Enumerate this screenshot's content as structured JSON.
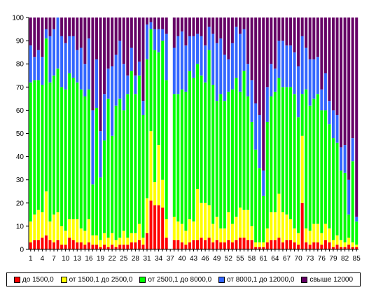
{
  "chart_data": {
    "type": "bar",
    "stacked": true,
    "normalized_percent": true,
    "ylim": [
      0,
      100
    ],
    "yticks": [
      0,
      10,
      20,
      30,
      40,
      50,
      60,
      70,
      80,
      90,
      100
    ],
    "xtick_labels": [
      "1",
      "4",
      "7",
      "10",
      "13",
      "16",
      "19",
      "22",
      "25",
      "28",
      "31",
      "34",
      "37",
      "40",
      "43",
      "46",
      "49",
      "52",
      "55",
      "58",
      "61",
      "64",
      "67",
      "70",
      "73",
      "76",
      "79",
      "82",
      "85"
    ],
    "grid": false,
    "legend_position": "bottom",
    "title": "",
    "xlabel": "",
    "ylabel": "",
    "categories": [
      "1",
      "2",
      "3",
      "4",
      "5",
      "6",
      "7",
      "8",
      "9",
      "10",
      "11",
      "12",
      "13",
      "14",
      "15",
      "16",
      "17",
      "18",
      "19",
      "20",
      "21",
      "22",
      "23",
      "24",
      "25",
      "26",
      "27",
      "28",
      "29",
      "30",
      "31",
      "32",
      "33",
      "34",
      "35",
      "36",
      "37",
      "38",
      "39",
      "40",
      "41",
      "42",
      "43",
      "44",
      "45",
      "46",
      "47",
      "48",
      "49",
      "50",
      "51",
      "52",
      "53",
      "54",
      "55",
      "56",
      "57",
      "58",
      "59",
      "60",
      "61",
      "62",
      "63",
      "64",
      "65",
      "66",
      "67",
      "68",
      "69",
      "70",
      "71",
      "72",
      "73",
      "74",
      "75",
      "76",
      "77",
      "78",
      "79",
      "80",
      "81",
      "82",
      "83",
      "84",
      "85"
    ],
    "series": [
      {
        "name": "до 1500,0",
        "color": "#ff0000",
        "values": [
          3,
          4,
          4,
          5,
          6,
          4,
          3,
          4,
          2,
          2,
          5,
          4,
          3,
          3,
          2,
          3,
          2,
          2,
          1,
          2,
          1,
          2,
          1,
          2,
          2,
          2,
          3,
          3,
          4,
          2,
          7,
          21,
          19,
          19,
          18,
          5,
          0,
          4,
          4,
          3,
          2,
          3,
          4,
          4,
          5,
          4,
          5,
          3,
          4,
          3,
          3,
          4,
          3,
          4,
          5,
          5,
          4,
          4,
          1,
          1,
          1,
          3,
          4,
          4,
          5,
          3,
          4,
          4,
          3,
          2,
          20,
          3,
          2,
          3,
          3,
          2,
          4,
          3,
          1,
          2,
          1,
          1,
          2,
          1,
          1
        ]
      },
      {
        "name": "от 1500,1 до 2500,0",
        "color": "#ffff00",
        "values": [
          9,
          11,
          13,
          11,
          19,
          8,
          12,
          12,
          8,
          6,
          8,
          9,
          10,
          6,
          6,
          10,
          4,
          4,
          3,
          5,
          4,
          5,
          3,
          3,
          6,
          3,
          4,
          4,
          7,
          3,
          15,
          30,
          10,
          26,
          12,
          8,
          0,
          10,
          8,
          8,
          6,
          10,
          8,
          22,
          15,
          16,
          14,
          8,
          10,
          6,
          6,
          12,
          8,
          10,
          13,
          12,
          13,
          6,
          2,
          2,
          2,
          6,
          12,
          12,
          19,
          13,
          11,
          9,
          6,
          5,
          29,
          6,
          6,
          8,
          8,
          5,
          7,
          6,
          3,
          4,
          3,
          2,
          3,
          2,
          1
        ]
      },
      {
        "name": "от 2500,1 до 8000,0",
        "color": "#00ff00",
        "values": [
          60,
          58,
          56,
          55,
          66,
          60,
          60,
          62,
          60,
          61,
          63,
          61,
          59,
          60,
          58,
          56,
          22,
          55,
          27,
          40,
          60,
          42,
          58,
          60,
          52,
          62,
          70,
          60,
          64,
          53,
          60,
          44,
          57,
          40,
          60,
          60,
          0,
          53,
          55,
          58,
          60,
          64,
          62,
          54,
          55,
          52,
          67,
          60,
          50,
          58,
          55,
          52,
          58,
          60,
          50,
          60,
          49,
          45,
          40,
          32,
          20,
          46,
          50,
          52,
          50,
          54,
          55,
          57,
          58,
          50,
          18,
          60,
          54,
          54,
          56,
          53,
          49,
          45,
          44,
          40,
          30,
          30,
          10,
          35,
          10
        ]
      },
      {
        "name": "от 8000,1 до 12000,0",
        "color": "#3366ff",
        "values": [
          16,
          10,
          13,
          12,
          4,
          20,
          20,
          22,
          22,
          20,
          16,
          18,
          14,
          18,
          14,
          22,
          32,
          21,
          20,
          20,
          13,
          30,
          22,
          25,
          20,
          8,
          10,
          8,
          6,
          6,
          15,
          3,
          9,
          10,
          5,
          20,
          0,
          20,
          25,
          25,
          20,
          15,
          18,
          13,
          17,
          16,
          10,
          22,
          25,
          24,
          20,
          14,
          20,
          22,
          25,
          18,
          14,
          18,
          20,
          23,
          11,
          15,
          14,
          10,
          16,
          20,
          18,
          18,
          18,
          22,
          25,
          18,
          20,
          17,
          16,
          9,
          16,
          10,
          12,
          12,
          10,
          12,
          15,
          10,
          2
        ]
      },
      {
        "name": "свыше 12000",
        "color": "#660066",
        "values": [
          12,
          17,
          14,
          17,
          5,
          8,
          5,
          0,
          8,
          11,
          8,
          8,
          14,
          13,
          20,
          9,
          40,
          18,
          49,
          33,
          22,
          21,
          16,
          10,
          20,
          25,
          13,
          25,
          19,
          36,
          3,
          2,
          5,
          5,
          5,
          7,
          0,
          13,
          8,
          6,
          12,
          8,
          8,
          7,
          8,
          12,
          4,
          7,
          11,
          9,
          16,
          18,
          11,
          4,
          7,
          5,
          20,
          27,
          37,
          42,
          66,
          30,
          20,
          22,
          10,
          10,
          12,
          12,
          15,
          21,
          8,
          13,
          18,
          18,
          17,
          31,
          24,
          36,
          40,
          42,
          56,
          55,
          70,
          52,
          86
        ]
      }
    ]
  },
  "legend": [
    {
      "label": "до 1500,0",
      "color": "#ff0000"
    },
    {
      "label": "от 1500,1 до 2500,0",
      "color": "#ffff00"
    },
    {
      "label": "от 2500,1 до 8000,0",
      "color": "#00ff00"
    },
    {
      "label": "от 8000,1 до 12000,0",
      "color": "#3366ff"
    },
    {
      "label": "свыше 12000",
      "color": "#660066"
    }
  ]
}
